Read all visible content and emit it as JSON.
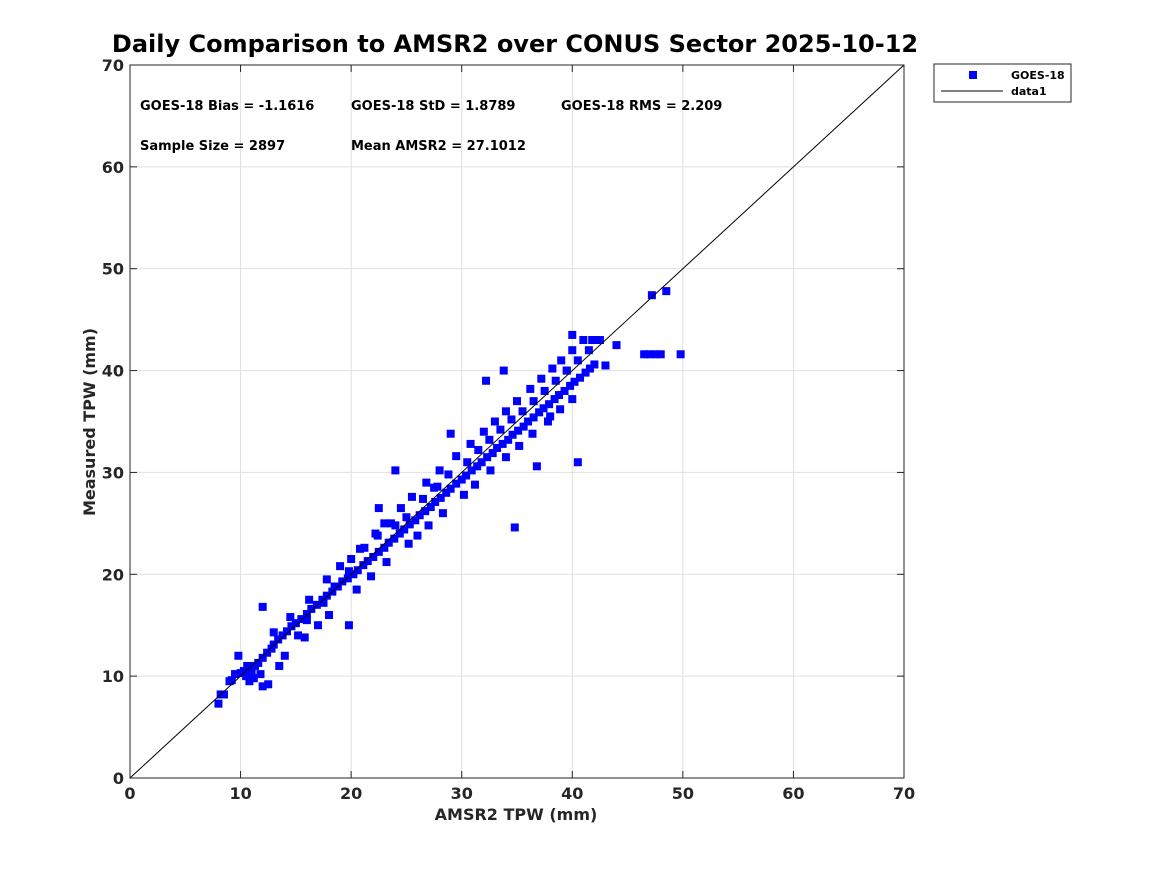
{
  "chart_data": {
    "type": "scatter",
    "title": "Daily Comparison to AMSR2 over CONUS Sector 2025-10-12",
    "xlabel": "AMSR2 TPW (mm)",
    "ylabel": "Measured TPW (mm)",
    "xlim": [
      0,
      70
    ],
    "ylim": [
      0,
      70
    ],
    "xticks": [
      0,
      10,
      20,
      30,
      40,
      50,
      60,
      70
    ],
    "yticks": [
      0,
      10,
      20,
      30,
      40,
      50,
      60,
      70
    ],
    "xtick_labels": [
      "0",
      "10",
      "20",
      "30",
      "40",
      "50",
      "60",
      "70"
    ],
    "ytick_labels": [
      "0",
      "10",
      "20",
      "30",
      "40",
      "50",
      "60",
      "70"
    ],
    "grid": true,
    "legend_position": "outside-top-right",
    "series": [
      {
        "name": "GOES-18",
        "kind": "scatter",
        "marker": "square",
        "color": "#0000ff",
        "x": [
          8.0,
          8.2,
          8.5,
          9.0,
          9.5,
          10.0,
          10.3,
          10.5,
          11.0,
          11.3,
          11.6,
          12.0,
          12.4,
          12.8,
          13.0,
          13.4,
          13.8,
          14.2,
          14.6,
          15.0,
          15.5,
          16.0,
          16.4,
          16.9,
          17.4,
          17.8,
          18.3,
          18.8,
          19.2,
          19.7,
          20.2,
          20.6,
          21.1,
          21.5,
          22.0,
          22.5,
          23.0,
          23.4,
          23.9,
          24.4,
          24.8,
          25.3,
          25.8,
          26.2,
          26.7,
          27.2,
          27.6,
          28.1,
          28.6,
          29.0,
          29.5,
          30.0,
          30.4,
          30.9,
          31.4,
          31.8,
          32.3,
          32.8,
          33.2,
          33.7,
          34.2,
          34.6,
          35.1,
          35.6,
          36.0,
          36.5,
          37.0,
          37.4,
          37.9,
          38.4,
          38.8,
          39.3,
          39.8,
          40.2,
          40.7,
          41.2,
          41.6,
          42.0,
          9.8,
          10.6,
          11.2,
          12.0,
          12.5,
          13.5,
          15.2,
          16.0,
          17.5,
          18.5,
          19.8,
          20.0,
          21.2,
          22.4,
          23.6,
          24.0,
          25.0,
          26.5,
          27.8,
          28.8,
          30.5,
          31.5,
          32.5,
          33.5,
          34.5,
          35.5,
          36.5,
          37.5,
          38.5,
          39.5,
          40.5,
          41.5,
          13.0,
          14.5,
          16.2,
          17.8,
          19.0,
          20.8,
          22.2,
          23.0,
          24.5,
          25.5,
          26.8,
          28.0,
          29.5,
          30.8,
          32.0,
          33.0,
          34.0,
          35.0,
          36.2,
          37.2,
          38.2,
          39.0,
          40.0,
          41.0,
          42.5,
          12.0,
          19.8,
          22.5,
          24.0,
          27.5,
          29.0,
          32.2,
          33.8,
          34.8,
          36.8,
          38.0,
          39.5,
          40.0,
          40.5,
          41.8,
          43.0,
          44.0,
          46.5,
          47.0,
          47.5,
          48.0,
          48.5,
          49.8,
          47.2,
          8.3,
          9.2,
          10.8,
          11.8,
          14.0,
          15.8,
          17.0,
          18.0,
          20.5,
          21.8,
          23.2,
          25.2,
          26.0,
          27.0,
          28.3,
          30.2,
          31.2,
          32.6,
          34.0,
          35.2,
          36.4,
          37.8,
          38.9,
          40.0
        ],
        "y": [
          7.3,
          8.2,
          8.2,
          9.5,
          10.2,
          10.3,
          10.5,
          10.0,
          10.4,
          11.0,
          11.3,
          11.8,
          12.3,
          12.7,
          13.1,
          13.6,
          14.0,
          14.4,
          14.9,
          15.2,
          15.6,
          16.1,
          16.6,
          17.0,
          17.5,
          17.9,
          18.3,
          18.8,
          19.3,
          19.6,
          20.0,
          20.4,
          20.9,
          21.3,
          21.7,
          22.2,
          22.6,
          23.1,
          23.5,
          24.0,
          24.4,
          24.9,
          25.3,
          25.8,
          26.2,
          26.6,
          27.1,
          27.5,
          28.0,
          28.4,
          28.9,
          29.3,
          29.7,
          30.2,
          30.6,
          31.0,
          31.5,
          31.9,
          32.4,
          32.8,
          33.2,
          33.7,
          34.1,
          34.5,
          35.0,
          35.4,
          35.9,
          36.3,
          36.7,
          37.2,
          37.6,
          38.0,
          38.5,
          38.9,
          39.3,
          39.8,
          40.2,
          40.6,
          12.0,
          11.0,
          9.8,
          9.0,
          9.2,
          11.0,
          14.0,
          15.5,
          17.2,
          18.8,
          20.3,
          21.5,
          22.6,
          23.8,
          25.0,
          24.8,
          25.6,
          27.4,
          28.6,
          29.8,
          31.0,
          32.2,
          33.2,
          34.2,
          35.2,
          36.0,
          37.0,
          38.0,
          39.0,
          40.0,
          41.0,
          42.0,
          14.3,
          15.8,
          17.5,
          19.5,
          20.8,
          22.5,
          24.0,
          25.0,
          26.5,
          27.6,
          29.0,
          30.2,
          31.6,
          32.8,
          34.0,
          35.0,
          36.0,
          37.0,
          38.2,
          39.2,
          40.2,
          41.0,
          42.0,
          43.0,
          43.0,
          16.8,
          15.0,
          26.5,
          30.2,
          28.5,
          33.8,
          39.0,
          40.0,
          24.6,
          30.6,
          35.5,
          40.0,
          43.5,
          31.0,
          43.0,
          40.5,
          42.5,
          41.6,
          41.6,
          41.6,
          41.6,
          47.8,
          41.6,
          47.4,
          8.2,
          9.6,
          9.5,
          10.2,
          12.0,
          13.8,
          15.0,
          16.0,
          18.5,
          19.8,
          21.2,
          23.0,
          23.8,
          24.8,
          26.0,
          27.8,
          28.8,
          30.2,
          31.5,
          32.6,
          33.8,
          35.0,
          36.2,
          37.2
        ]
      },
      {
        "name": "data1",
        "kind": "line",
        "color": "#000000",
        "x": [
          0,
          70
        ],
        "y": [
          0,
          70
        ]
      }
    ],
    "annotations": [
      "GOES-18 Bias = -1.1616",
      "GOES-18 StD = 1.8789",
      "GOES-18 RMS = 2.209",
      "Sample Size = 2897",
      "Mean AMSR2 = 27.1012"
    ]
  }
}
